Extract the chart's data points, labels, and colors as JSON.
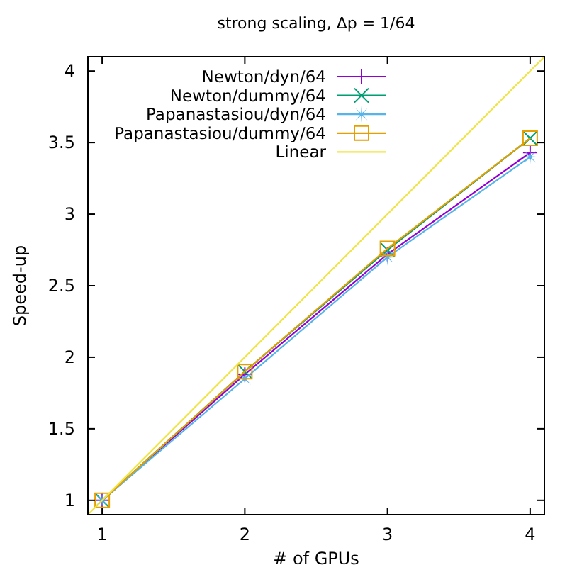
{
  "chart_data": {
    "type": "line",
    "title": "strong scaling, Δp = 1/64",
    "xlabel": "# of GPUs",
    "ylabel": "Speed-up",
    "xlim": [
      0.9,
      4.1
    ],
    "ylim": [
      0.9,
      4.1
    ],
    "xticks": [
      1,
      2,
      3,
      4
    ],
    "yticks": [
      1,
      1.5,
      2,
      2.5,
      3,
      3.5,
      4
    ],
    "grid": false,
    "legend": "top left",
    "series": [
      {
        "name": "Newton/dyn/64",
        "color": "#9400d3",
        "marker": "plus",
        "x": [
          1,
          2,
          3,
          4
        ],
        "values": [
          1,
          1.88,
          2.72,
          3.43
        ]
      },
      {
        "name": "Newton/dummy/64",
        "color": "#009e73",
        "marker": "cross",
        "x": [
          1,
          2,
          3,
          4
        ],
        "values": [
          1,
          1.9,
          2.75,
          3.53
        ]
      },
      {
        "name": "Papanastasiou/dyn/64",
        "color": "#56b4e9",
        "marker": "star",
        "x": [
          1,
          2,
          3,
          4
        ],
        "values": [
          1,
          1.85,
          2.7,
          3.4
        ]
      },
      {
        "name": "Papanastasiou/dummy/64",
        "color": "#e69f00",
        "marker": "square",
        "x": [
          1,
          2,
          3,
          4
        ],
        "values": [
          1,
          1.9,
          2.76,
          3.53
        ]
      },
      {
        "name": "Linear",
        "color": "#f0e442",
        "marker": "none",
        "x": [
          0.9,
          4.1
        ],
        "values": [
          0.9,
          4.1
        ]
      }
    ]
  }
}
